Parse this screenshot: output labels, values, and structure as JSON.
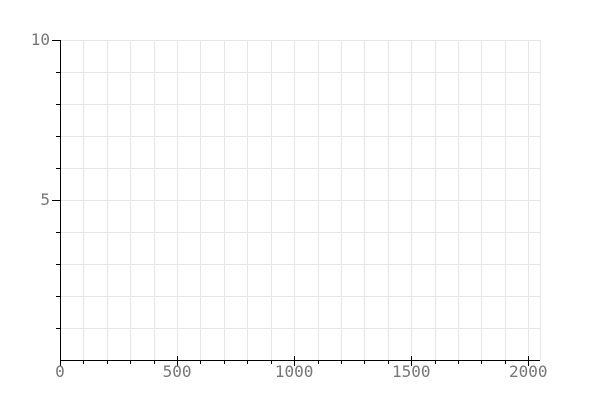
{
  "chart_data": {
    "type": "line",
    "title": "",
    "xlabel": "",
    "ylabel": "",
    "xlim": [
      0,
      2050
    ],
    "ylim": [
      0,
      10
    ],
    "x_major_ticks": [
      0,
      500,
      1000,
      1500,
      2000
    ],
    "x_tick_labels": [
      "0",
      "500",
      "1000",
      "1500",
      "2000"
    ],
    "y_major_ticks": [
      5,
      10
    ],
    "y_tick_labels": [
      "5",
      "10"
    ],
    "grid": true,
    "series": []
  },
  "colors": {
    "background": "#ffffff",
    "grid": "#e6e6e6",
    "axis": "#000000",
    "tick_label": "#777777"
  }
}
